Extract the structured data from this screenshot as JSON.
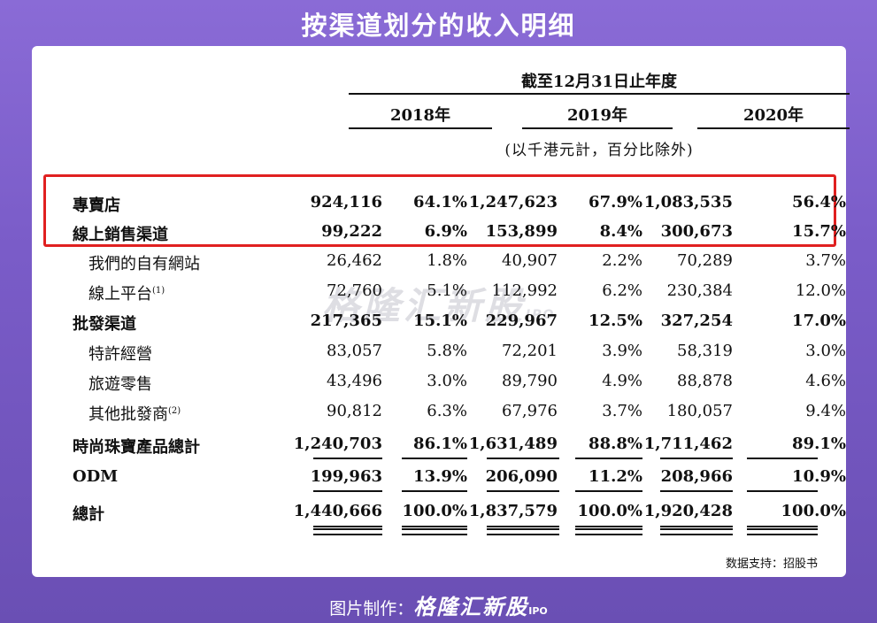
{
  "title": "按渠道划分的收入明细",
  "header": {
    "period": "截至12月31日止年度",
    "years": [
      "2018年",
      "2019年",
      "2020年"
    ],
    "unit": "(以千港元計，百分比除外)"
  },
  "rows": [
    {
      "label": "專賣店",
      "bold": true,
      "sub": false,
      "note": "",
      "v": [
        "924,116",
        "64.1%",
        "1,247,623",
        "67.9%",
        "1,083,535",
        "56.4%"
      ]
    },
    {
      "label": "線上銷售渠道",
      "bold": true,
      "sub": false,
      "note": "",
      "v": [
        "99,222",
        "6.9%",
        "153,899",
        "8.4%",
        "300,673",
        "15.7%"
      ]
    },
    {
      "label": "我們的自有網站",
      "bold": false,
      "sub": true,
      "note": "",
      "v": [
        "26,462",
        "1.8%",
        "40,907",
        "2.2%",
        "70,289",
        "3.7%"
      ]
    },
    {
      "label": "線上平台",
      "bold": false,
      "sub": true,
      "note": "(1)",
      "v": [
        "72,760",
        "5.1%",
        "112,992",
        "6.2%",
        "230,384",
        "12.0%"
      ]
    },
    {
      "label": "批發渠道",
      "bold": true,
      "sub": false,
      "note": "",
      "v": [
        "217,365",
        "15.1%",
        "229,967",
        "12.5%",
        "327,254",
        "17.0%"
      ]
    },
    {
      "label": "特許經營",
      "bold": false,
      "sub": true,
      "note": "",
      "v": [
        "83,057",
        "5.8%",
        "72,201",
        "3.9%",
        "58,319",
        "3.0%"
      ]
    },
    {
      "label": "旅遊零售",
      "bold": false,
      "sub": true,
      "note": "",
      "v": [
        "43,496",
        "3.0%",
        "89,790",
        "4.9%",
        "88,878",
        "4.6%"
      ]
    },
    {
      "label": "其他批發商",
      "bold": false,
      "sub": true,
      "note": "(2)",
      "v": [
        "90,812",
        "6.3%",
        "67,976",
        "3.7%",
        "180,057",
        "9.4%"
      ]
    },
    {
      "label": "時尚珠寶產品總計",
      "bold": true,
      "sub": false,
      "note": "",
      "v": [
        "1,240,703",
        "86.1%",
        "1,631,489",
        "88.8%",
        "1,711,462",
        "89.1%"
      ]
    },
    {
      "label": "ODM",
      "bold": true,
      "sub": false,
      "note": "",
      "v": [
        "199,963",
        "13.9%",
        "206,090",
        "11.2%",
        "208,966",
        "10.9%"
      ]
    },
    {
      "label": "總計",
      "bold": true,
      "sub": false,
      "note": "",
      "v": [
        "1,440,666",
        "100.0%",
        "1,837,579",
        "100.0%",
        "1,920,428",
        "100.0%"
      ]
    }
  ],
  "watermark": {
    "brand": "格隆汇新股",
    "ipo": "IPO"
  },
  "source": "数据支持：招股书",
  "footer": {
    "prefix": "图片制作：",
    "brand": "格隆汇新股",
    "ipo": "IPO"
  }
}
